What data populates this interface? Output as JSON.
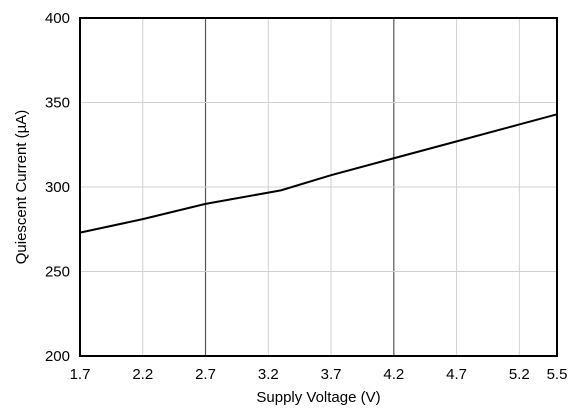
{
  "chart_data": {
    "type": "line",
    "xlabel": "Supply Voltage (V)",
    "ylabel": "Quiescent Current (µA)",
    "xlim": [
      1.7,
      5.5
    ],
    "ylim": [
      200,
      400
    ],
    "x_ticks": [
      1.7,
      2.2,
      2.7,
      3.2,
      3.7,
      4.2,
      4.7,
      5.2,
      5.5
    ],
    "x_tick_labels": [
      "1.7",
      "2.2",
      "2.7",
      "3.2",
      "3.7",
      "4.2",
      "4.7",
      "5.2",
      "5.5"
    ],
    "y_ticks": [
      200,
      250,
      300,
      350,
      400
    ],
    "y_tick_labels": [
      "200",
      "250",
      "300",
      "350",
      "400"
    ],
    "major_gridlines_x": [
      2.7,
      4.2
    ],
    "grid": true,
    "legend": "none",
    "series": [
      {
        "x": [
          1.7,
          2.2,
          2.7,
          3.3,
          3.7,
          4.2,
          4.7,
          5.2,
          5.5
        ],
        "values": [
          273,
          281,
          290,
          298,
          307,
          317,
          327,
          337,
          343
        ]
      }
    ],
    "colors": {
      "line": "#000000",
      "grid_minor": "#d0d0d0",
      "grid_major": "#555555",
      "frame": "#000000"
    }
  }
}
